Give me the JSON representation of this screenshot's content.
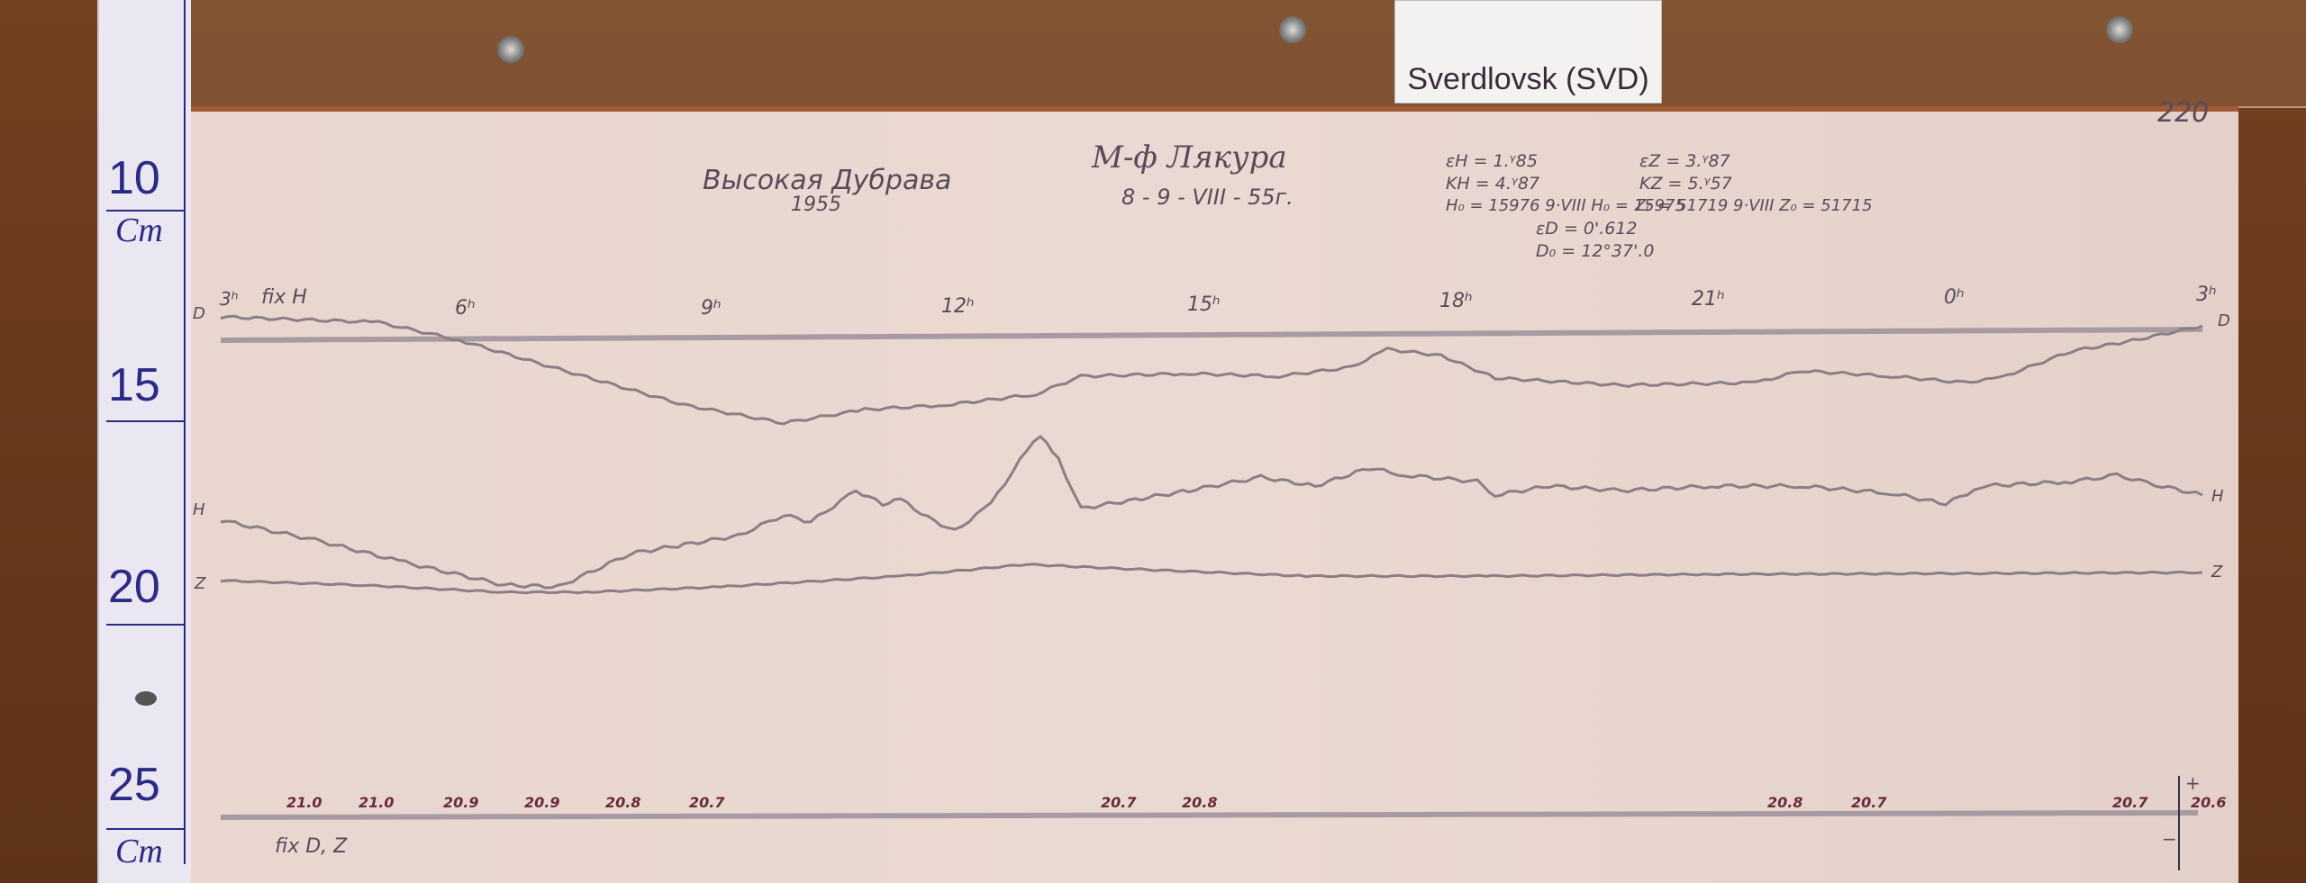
{
  "ruler": {
    "labels": [
      "10",
      "Cm",
      "15",
      "20",
      "25",
      "Cm"
    ]
  },
  "station_card": {
    "text": "Sverdlovsk (SVD)"
  },
  "sheet": {
    "number": "220",
    "station_name": "Высокая Дубрава",
    "year": "1955",
    "instrument": "М-ф Лякура",
    "date": "8 - 9 - VIII - 55г.",
    "constants": {
      "eps_h": "εH = 1.ᵞ85",
      "k_h": "KH = 4.ᵞ87",
      "h0": "H₀ = 15976  9·VIII H₀ = 15975",
      "eps_z": "εZ = 3.ᵞ87",
      "k_z": "KZ = 5.ᵞ57",
      "z0": "Z₀ = 51719  9·VIII Z₀ = 51715",
      "eps_d": "εD = 0'.612",
      "d0": "D₀ = 12°37'.0"
    },
    "top_fix_label": "fix H",
    "bottom_fix_label": "fix D, Z",
    "time_labels": [
      "3ʰ",
      "6ʰ",
      "9ʰ",
      "12ʰ",
      "15ʰ",
      "18ʰ",
      "21ʰ",
      "0ʰ",
      "3ʰ"
    ],
    "trace_labels_left": [
      "D",
      "H",
      "Z"
    ],
    "trace_labels_right": [
      "D",
      "H",
      "Z"
    ],
    "temperature_labels": [
      "21.0",
      "21.0",
      "20.9",
      "20.9",
      "20.8",
      "20.7",
      "20.7",
      "20.8",
      "20.8",
      "20.7",
      "20.7",
      "20.6"
    ],
    "arrow_plus": "+",
    "arrow_minus": "−",
    "ink_color": "#5a4a5a",
    "trace_color": "#8a7f86"
  }
}
